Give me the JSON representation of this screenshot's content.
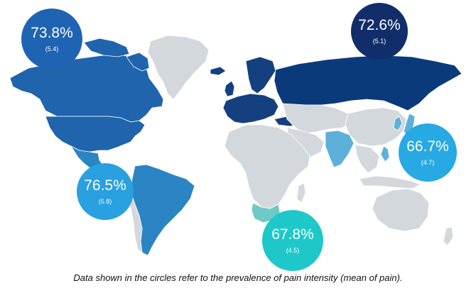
{
  "caption": "Data shown in the circles refer to the prevalence of pain intensity (mean of pain).",
  "colors": {
    "ocean": "#ffffff",
    "no_data": "#d3d8dc",
    "border": "#ffffff",
    "europe": "#14407f",
    "russia": "#0b3a7a",
    "north_america": "#1f64ad",
    "latin_america": "#2b84c4",
    "asia": "#5cb0d9",
    "south_africa": "#6ec9c7"
  },
  "regions": [
    {
      "name": "Europe",
      "percent": "72.6%",
      "mean": "(5.1)",
      "color": "#112e6b"
    },
    {
      "name": "North America",
      "percent": "73.8%",
      "mean": "(5.4)",
      "color": "#1f63b3"
    },
    {
      "name": "Latin America",
      "percent": "76.5%",
      "mean": "(5.8)",
      "color": "#29a0df"
    },
    {
      "name": "Asia",
      "percent": "66.7%",
      "mean": "(4.7)",
      "color": "#27a9e3"
    },
    {
      "name": "South Africa",
      "percent": "67.8%",
      "mean": "(4.5)",
      "color": "#1ec8c8"
    }
  ]
}
